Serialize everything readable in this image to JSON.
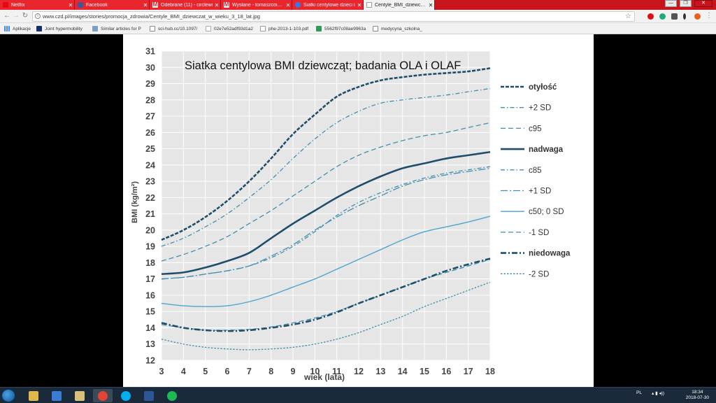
{
  "browser": {
    "tabs": [
      {
        "label": "Netflix",
        "icon_color": "#e50914",
        "active": false
      },
      {
        "label": "Facebook",
        "icon_color": "#3b5998",
        "active": false
      },
      {
        "label": "Odebrane (11) - circlewi",
        "icon_color": "#ffffff",
        "active": false
      },
      {
        "label": "Wysłane - tomaszcoiakk",
        "icon_color": "#ffffff",
        "active": false
      },
      {
        "label": "Siatki centylowe dzieci i",
        "icon_color": "#3b78e7",
        "active": false
      },
      {
        "label": "Centyle_BMI_dziewczat_",
        "icon_color": "#dddddd",
        "active": true
      }
    ],
    "window_buttons": [
      "—",
      "❐",
      "✕"
    ],
    "url": "www.czd.pl/images/stories/promocja_zdrowia/Centyle_BMI_dziewczat_w_wieku_3_18_lat.jpg",
    "bookmarks": [
      {
        "label": "Aplikacje",
        "icon_color": "#4285f4"
      },
      {
        "label": "Joint hypermobility",
        "icon_color": "#1a2e6e"
      },
      {
        "label": "Similar articles for P",
        "icon_color": "#7aa0c4"
      },
      {
        "label": "sci-hub.cc/10.1097/",
        "icon_color": "#888888"
      },
      {
        "label": "02e7e52adf93d1a2",
        "icon_color": "#aaaaaa"
      },
      {
        "label": "phe-2013-1-103.pdf",
        "icon_color": "#999999"
      },
      {
        "label": "5562f97c08ae9963a",
        "icon_color": "#2e9b5a"
      },
      {
        "label": "medycyna_szkolna_",
        "icon_color": "#888888"
      }
    ]
  },
  "chart_data": {
    "type": "line",
    "title": "Siatka centylowa BMI dziewcząt; badania OLA i OLAF",
    "xlabel": "wiek (lata)",
    "ylabel": "BMI (kg/m²)",
    "xlim": [
      3,
      18
    ],
    "ylim": [
      12,
      31
    ],
    "x_ticks": [
      3,
      4,
      5,
      6,
      7,
      8,
      9,
      10,
      11,
      12,
      13,
      14,
      15,
      16,
      17,
      18
    ],
    "y_ticks": [
      12,
      13,
      14,
      15,
      16,
      17,
      18,
      19,
      20,
      21,
      22,
      23,
      24,
      25,
      26,
      27,
      28,
      29,
      30,
      31
    ],
    "grid": true,
    "legend_position": "right",
    "series": [
      {
        "name": "otyłość",
        "color": "#1f4e6b",
        "style": "dashed-bold",
        "x": [
          3,
          4,
          5,
          6,
          7,
          8,
          9,
          10,
          11,
          12,
          13,
          14,
          15,
          16,
          17,
          18
        ],
        "values": [
          19.4,
          20.0,
          20.8,
          21.8,
          23.0,
          24.4,
          25.9,
          27.1,
          28.2,
          28.8,
          29.2,
          29.4,
          29.55,
          29.65,
          29.75,
          29.95
        ]
      },
      {
        "name": "+2 SD",
        "color": "#3f8fae",
        "style": "dashdot",
        "x": [
          3,
          4,
          5,
          6,
          7,
          8,
          9,
          10,
          11,
          12,
          13,
          14,
          15,
          16,
          17,
          18
        ],
        "values": [
          19.0,
          19.5,
          20.2,
          21.0,
          22.0,
          23.1,
          24.4,
          25.6,
          26.6,
          27.3,
          27.8,
          28.0,
          28.15,
          28.3,
          28.5,
          28.7
        ]
      },
      {
        "name": "c95",
        "color": "#3f8fae",
        "style": "dashed",
        "x": [
          3,
          4,
          5,
          6,
          7,
          8,
          9,
          10,
          11,
          12,
          13,
          14,
          15,
          16,
          17,
          18
        ],
        "values": [
          18.1,
          18.5,
          19.0,
          19.6,
          20.4,
          21.2,
          22.1,
          23.0,
          23.9,
          24.6,
          25.1,
          25.5,
          25.8,
          26.0,
          26.3,
          26.6
        ]
      },
      {
        "name": "nadwaga",
        "color": "#1f4e6b",
        "style": "solid-bold",
        "x": [
          3,
          4,
          5,
          6,
          7,
          8,
          9,
          10,
          11,
          12,
          13,
          14,
          15,
          16,
          17,
          18
        ],
        "values": [
          17.3,
          17.4,
          17.7,
          18.1,
          18.6,
          19.5,
          20.4,
          21.2,
          22.0,
          22.7,
          23.3,
          23.8,
          24.1,
          24.4,
          24.6,
          24.8
        ]
      },
      {
        "name": "c85",
        "color": "#3f8fae",
        "style": "dashdot",
        "x": [
          3,
          4,
          5,
          6,
          7,
          8,
          9,
          10,
          11,
          12,
          13,
          14,
          15,
          16,
          17,
          18
        ],
        "values": [
          17.0,
          17.1,
          17.3,
          17.5,
          17.8,
          18.3,
          19.0,
          19.9,
          20.9,
          21.7,
          22.3,
          22.8,
          23.2,
          23.5,
          23.7,
          23.9
        ]
      },
      {
        "name": "+1 SD",
        "color": "#3f8fae",
        "style": "dashdot-long",
        "x": [
          3,
          4,
          5,
          6,
          7,
          8,
          9,
          10,
          11,
          12,
          13,
          14,
          15,
          16,
          17,
          18
        ],
        "values": [
          17.0,
          17.1,
          17.3,
          17.5,
          17.8,
          18.4,
          19.1,
          20.0,
          20.8,
          21.5,
          22.1,
          22.7,
          23.1,
          23.4,
          23.6,
          23.8
        ]
      },
      {
        "name": "c50; 0 SD",
        "color": "#4ba6cf",
        "style": "solid",
        "x": [
          3,
          4,
          5,
          6,
          7,
          8,
          9,
          10,
          11,
          12,
          13,
          14,
          15,
          16,
          17,
          18
        ],
        "values": [
          15.5,
          15.35,
          15.3,
          15.35,
          15.6,
          16.0,
          16.5,
          17.0,
          17.6,
          18.2,
          18.8,
          19.4,
          19.9,
          20.2,
          20.5,
          20.85
        ]
      },
      {
        "name": "-1 SD",
        "color": "#3f8fae",
        "style": "dashed",
        "x": [
          3,
          4,
          5,
          6,
          7,
          8,
          9,
          10,
          11,
          12,
          13,
          14,
          15,
          16,
          17,
          18
        ],
        "values": [
          14.2,
          14.0,
          13.85,
          13.85,
          13.9,
          14.05,
          14.3,
          14.6,
          15.0,
          15.5,
          16.0,
          16.5,
          17.0,
          17.4,
          17.8,
          18.2
        ]
      },
      {
        "name": "niedowaga",
        "color": "#1f4e6b",
        "style": "dashdot-bold",
        "x": [
          3,
          4,
          5,
          6,
          7,
          8,
          9,
          10,
          11,
          12,
          13,
          14,
          15,
          16,
          17,
          18
        ],
        "values": [
          14.3,
          14.0,
          13.85,
          13.8,
          13.85,
          14.0,
          14.2,
          14.5,
          14.95,
          15.5,
          16.0,
          16.5,
          17.0,
          17.5,
          17.9,
          18.25
        ]
      },
      {
        "name": "-2 SD",
        "color": "#3f8fae",
        "style": "dotted",
        "x": [
          3,
          4,
          5,
          6,
          7,
          8,
          9,
          10,
          11,
          12,
          13,
          14,
          15,
          16,
          17,
          18
        ],
        "values": [
          13.3,
          13.0,
          12.8,
          12.7,
          12.65,
          12.7,
          12.8,
          13.0,
          13.3,
          13.7,
          14.2,
          14.7,
          15.3,
          15.8,
          16.3,
          16.8
        ]
      }
    ]
  },
  "taskbar": {
    "apps": [
      {
        "name": "folder",
        "color": "#e0b84a"
      },
      {
        "name": "media",
        "color": "#3a7bd5"
      },
      {
        "name": "explorer",
        "color": "#d6c07a"
      },
      {
        "name": "chrome",
        "color": "#e14434"
      },
      {
        "name": "skype",
        "color": "#00aff0"
      },
      {
        "name": "word",
        "color": "#2b5797"
      },
      {
        "name": "spotify",
        "color": "#1db954"
      }
    ],
    "language": "PL",
    "time": "18:34",
    "date": "2018-07-30"
  }
}
